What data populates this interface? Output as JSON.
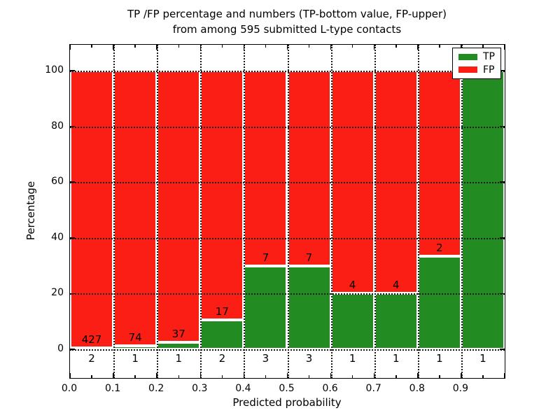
{
  "chart_data": {
    "type": "bar",
    "stacked": true,
    "title_line1": "TP /FP percentage and numbers (TP-bottom value, FP-upper)",
    "title_line2": "from among 595 submitted L-type contacts",
    "xlabel": "Predicted probability",
    "ylabel": "Percentage",
    "total_contacts": 595,
    "x_tick_labels": [
      "0.0",
      "0.1",
      "0.2",
      "0.3",
      "0.4",
      "0.5",
      "0.6",
      "0.7",
      "0.8",
      "0.9"
    ],
    "y_tick_values": [
      0,
      20,
      40,
      60,
      80,
      100
    ],
    "y_tick_labels": [
      "0",
      "20",
      "40",
      "60",
      "80",
      "100"
    ],
    "xlim": [
      0.0,
      1.0
    ],
    "ylim": [
      -10.3,
      109.3
    ],
    "grid": {
      "on": true,
      "style": "dotted",
      "color": "#1a1a1a"
    },
    "bar_edge_color": "#ffffff",
    "series": [
      {
        "name": "TP",
        "color": "#228b22"
      },
      {
        "name": "FP",
        "color": "#fb1e14"
      }
    ],
    "bins": [
      {
        "range": [
          0.0,
          0.1
        ],
        "tp": 2,
        "fp": 427
      },
      {
        "range": [
          0.1,
          0.2
        ],
        "tp": 1,
        "fp": 74
      },
      {
        "range": [
          0.2,
          0.3
        ],
        "tp": 1,
        "fp": 37
      },
      {
        "range": [
          0.3,
          0.4
        ],
        "tp": 2,
        "fp": 17
      },
      {
        "range": [
          0.4,
          0.5
        ],
        "tp": 3,
        "fp": 7
      },
      {
        "range": [
          0.5,
          0.6
        ],
        "tp": 3,
        "fp": 7
      },
      {
        "range": [
          0.6,
          0.7
        ],
        "tp": 1,
        "fp": 4
      },
      {
        "range": [
          0.7,
          0.8
        ],
        "tp": 1,
        "fp": 4
      },
      {
        "range": [
          0.8,
          0.9
        ],
        "tp": 1,
        "fp": 2
      },
      {
        "range": [
          0.9,
          1.0
        ],
        "tp": 1,
        "fp": 0
      }
    ],
    "legend": {
      "position": "upper right",
      "items": [
        {
          "label": "TP",
          "color": "#228b22"
        },
        {
          "label": "FP",
          "color": "#fb1e14"
        }
      ]
    }
  }
}
